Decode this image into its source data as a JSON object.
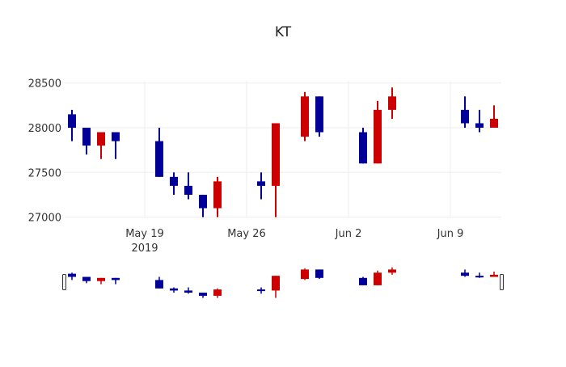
{
  "chart_data": {
    "type": "candlestick",
    "title": "KT",
    "xlabel": "",
    "ylabel": "",
    "ylim": [
      26990,
      28520
    ],
    "y_ticks": [
      27000,
      27500,
      28000,
      28500
    ],
    "x_ticks": [
      {
        "label": "May 19",
        "sublabel": "2019",
        "date": "2019-05-19"
      },
      {
        "label": "May 26",
        "sublabel": "",
        "date": "2019-05-26"
      },
      {
        "label": "Jun 2",
        "sublabel": "",
        "date": "2019-06-02"
      },
      {
        "label": "Jun 9",
        "sublabel": "",
        "date": "2019-06-09"
      }
    ],
    "grid": true,
    "rangeslider": true,
    "colors": {
      "increasing": "#cc0000",
      "decreasing": "#000099",
      "grid": "#eeeeee"
    },
    "candles": [
      {
        "date": "2019-05-14",
        "open": 28150,
        "high": 28200,
        "low": 27850,
        "close": 28000
      },
      {
        "date": "2019-05-15",
        "open": 28000,
        "high": 28000,
        "low": 27700,
        "close": 27800
      },
      {
        "date": "2019-05-16",
        "open": 27800,
        "high": 27950,
        "low": 27650,
        "close": 27950
      },
      {
        "date": "2019-05-17",
        "open": 27950,
        "high": 27950,
        "low": 27650,
        "close": 27850
      },
      {
        "date": "2019-05-20",
        "open": 27850,
        "high": 28000,
        "low": 27450,
        "close": 27450
      },
      {
        "date": "2019-05-21",
        "open": 27450,
        "high": 27500,
        "low": 27250,
        "close": 27350
      },
      {
        "date": "2019-05-22",
        "open": 27350,
        "high": 27500,
        "low": 27200,
        "close": 27250
      },
      {
        "date": "2019-05-23",
        "open": 27250,
        "high": 27250,
        "low": 27000,
        "close": 27100
      },
      {
        "date": "2019-05-24",
        "open": 27100,
        "high": 27450,
        "low": 27000,
        "close": 27400
      },
      {
        "date": "2019-05-27",
        "open": 27400,
        "high": 27500,
        "low": 27200,
        "close": 27350
      },
      {
        "date": "2019-05-28",
        "open": 27350,
        "high": 28050,
        "low": 27000,
        "close": 28050
      },
      {
        "date": "2019-05-30",
        "open": 27900,
        "high": 28400,
        "low": 27850,
        "close": 28350
      },
      {
        "date": "2019-05-31",
        "open": 28350,
        "high": 28350,
        "low": 27900,
        "close": 27950
      },
      {
        "date": "2019-06-03",
        "open": 27950,
        "high": 28000,
        "low": 27600,
        "close": 27600
      },
      {
        "date": "2019-06-04",
        "open": 27600,
        "high": 28300,
        "low": 27600,
        "close": 28200
      },
      {
        "date": "2019-06-05",
        "open": 28200,
        "high": 28450,
        "low": 28100,
        "close": 28350
      },
      {
        "date": "2019-06-10",
        "open": 28200,
        "high": 28350,
        "low": 28000,
        "close": 28050
      },
      {
        "date": "2019-06-11",
        "open": 28050,
        "high": 28200,
        "low": 27950,
        "close": 28000
      },
      {
        "date": "2019-06-12",
        "open": 28000,
        "high": 28250,
        "low": 28000,
        "close": 28100
      }
    ]
  }
}
